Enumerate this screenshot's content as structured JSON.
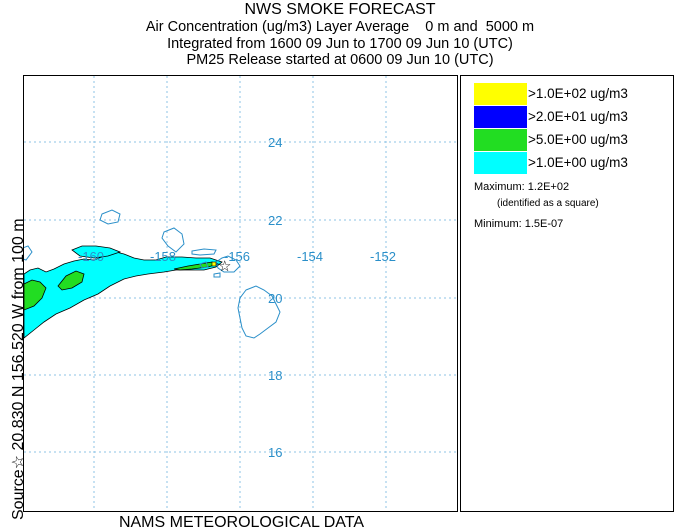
{
  "title": {
    "main": "NWS SMOKE FORECAST",
    "line2": "Air Concentration (ug/m3) Layer Average    0 m and  5000 m",
    "line3": "Integrated from 1600 09 Jun to 1700 09 Jun 10 (UTC)",
    "line4": "PM25 Release started at 0600 09 Jun 10 (UTC)"
  },
  "side_label": "Source☆ 20.830 N 156.520  W       from   100 m",
  "footer": "NAMS METEOROLOGICAL DATA",
  "map": {
    "lon_labels": [
      "-160",
      "-158",
      "-156",
      "-154",
      "-152"
    ],
    "lat_labels": [
      "24",
      "22",
      "20",
      "18",
      "16"
    ],
    "tick_color": "#2a8fc9",
    "coast_color": "#2a8fc9",
    "source_symbol": "☆"
  },
  "legend": {
    "items": [
      {
        "color": "#ffff00",
        "label": ">1.0E+02 ug/m3"
      },
      {
        "color": "#0000ff",
        "label": ">2.0E+01 ug/m3"
      },
      {
        "color": "#22dd22",
        "label": ">5.0E+00 ug/m3"
      },
      {
        "color": "#00ffff",
        "label": ">1.0E+00 ug/m3"
      }
    ],
    "maximum": "Maximum: 1.2E+02",
    "maximum_note": "(identified as a square)",
    "minimum": "Minimum: 1.5E-07"
  }
}
